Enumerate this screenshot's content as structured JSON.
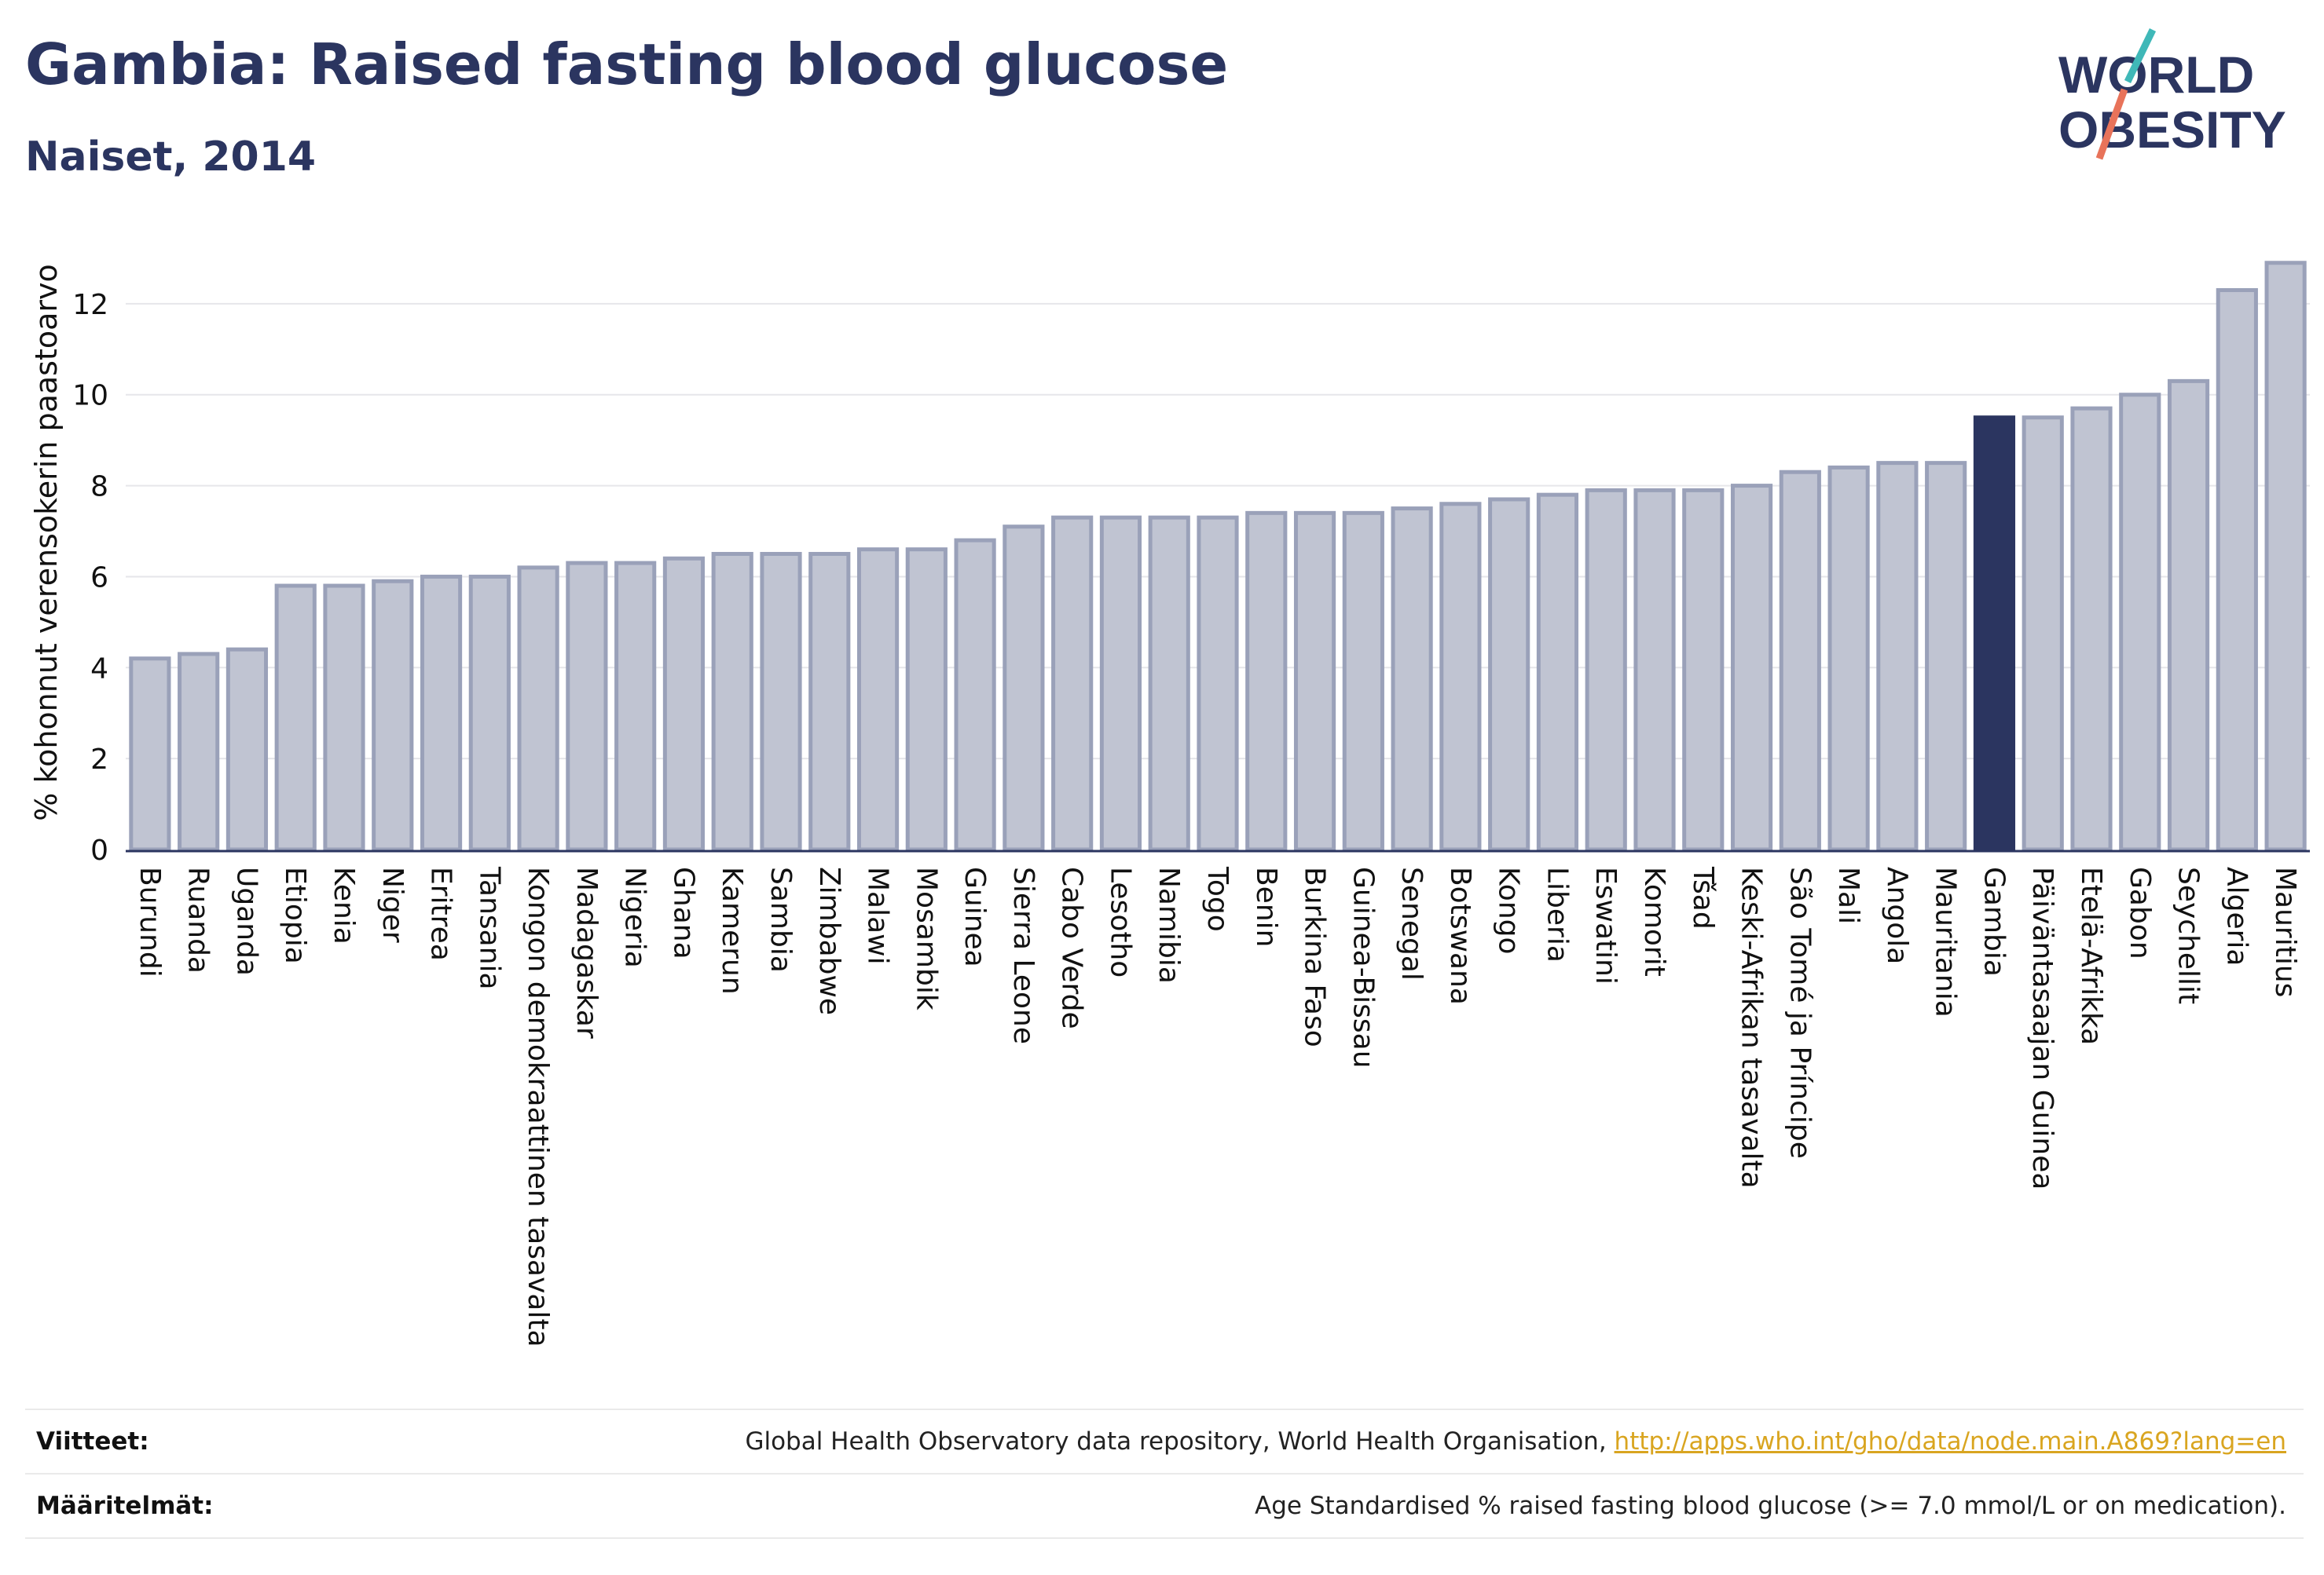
{
  "header": {
    "title": "Gambia: Raised fasting blood glucose",
    "subtitle": "Naiset, 2014"
  },
  "logo": {
    "line1": "WORLD",
    "line2": "OBESITY"
  },
  "chart_data": {
    "type": "bar",
    "title": "Gambia: Raised fasting blood glucose",
    "subtitle": "Naiset, 2014",
    "ylabel": "% kohonnut verensokerin paastoarvo",
    "xlabel": "",
    "ylim": [
      0,
      13.5
    ],
    "yticks": [
      0,
      2,
      4,
      6,
      8,
      10,
      12
    ],
    "grid": true,
    "highlight": "Gambia",
    "colors": {
      "bar": "#c0c4d2",
      "bar_border": "#9aa1b9",
      "highlight": "#2b3560"
    },
    "categories": [
      "Burundi",
      "Ruanda",
      "Uganda",
      "Etiopia",
      "Kenia",
      "Niger",
      "Eritrea",
      "Tansania",
      "Kongon demokraattinen tasavalta",
      "Madagaskar",
      "Nigeria",
      "Ghana",
      "Kamerun",
      "Sambia",
      "Zimbabwe",
      "Malawi",
      "Mosambik",
      "Guinea",
      "Sierra Leone",
      "Cabo Verde",
      "Lesotho",
      "Namibia",
      "Togo",
      "Benin",
      "Burkina Faso",
      "Guinea-Bissau",
      "Senegal",
      "Botswana",
      "Kongo",
      "Liberia",
      "Eswatini",
      "Komorit",
      "Tšad",
      "Keski-Afrikan tasavalta",
      "São Tomé ja Príncipe",
      "Mali",
      "Angola",
      "Mauritania",
      "Gambia",
      "Päiväntasaajan Guinea",
      "Etelä-Afrikka",
      "Gabon",
      "Seychellit",
      "Algeria",
      "Mauritius"
    ],
    "values": [
      4.2,
      4.3,
      4.4,
      5.8,
      5.8,
      5.9,
      6.0,
      6.0,
      6.2,
      6.3,
      6.3,
      6.4,
      6.5,
      6.5,
      6.5,
      6.6,
      6.6,
      6.8,
      7.1,
      7.3,
      7.3,
      7.3,
      7.3,
      7.4,
      7.4,
      7.4,
      7.5,
      7.6,
      7.7,
      7.8,
      7.9,
      7.9,
      7.9,
      8.0,
      8.3,
      8.4,
      8.5,
      8.5,
      9.5,
      9.5,
      9.7,
      10.0,
      10.3,
      12.3,
      12.9
    ]
  },
  "footer": {
    "sources_label": "Viitteet:",
    "sources_text": "Global Health Observatory data repository, World Health Organisation, ",
    "sources_link": "http://apps.who.int/gho/data/node.main.A869?lang=en",
    "definitions_label": "Määritelmät:",
    "definitions_text": "Age Standardised % raised fasting blood glucose (>= 7.0 mmol/L or on medication)."
  }
}
